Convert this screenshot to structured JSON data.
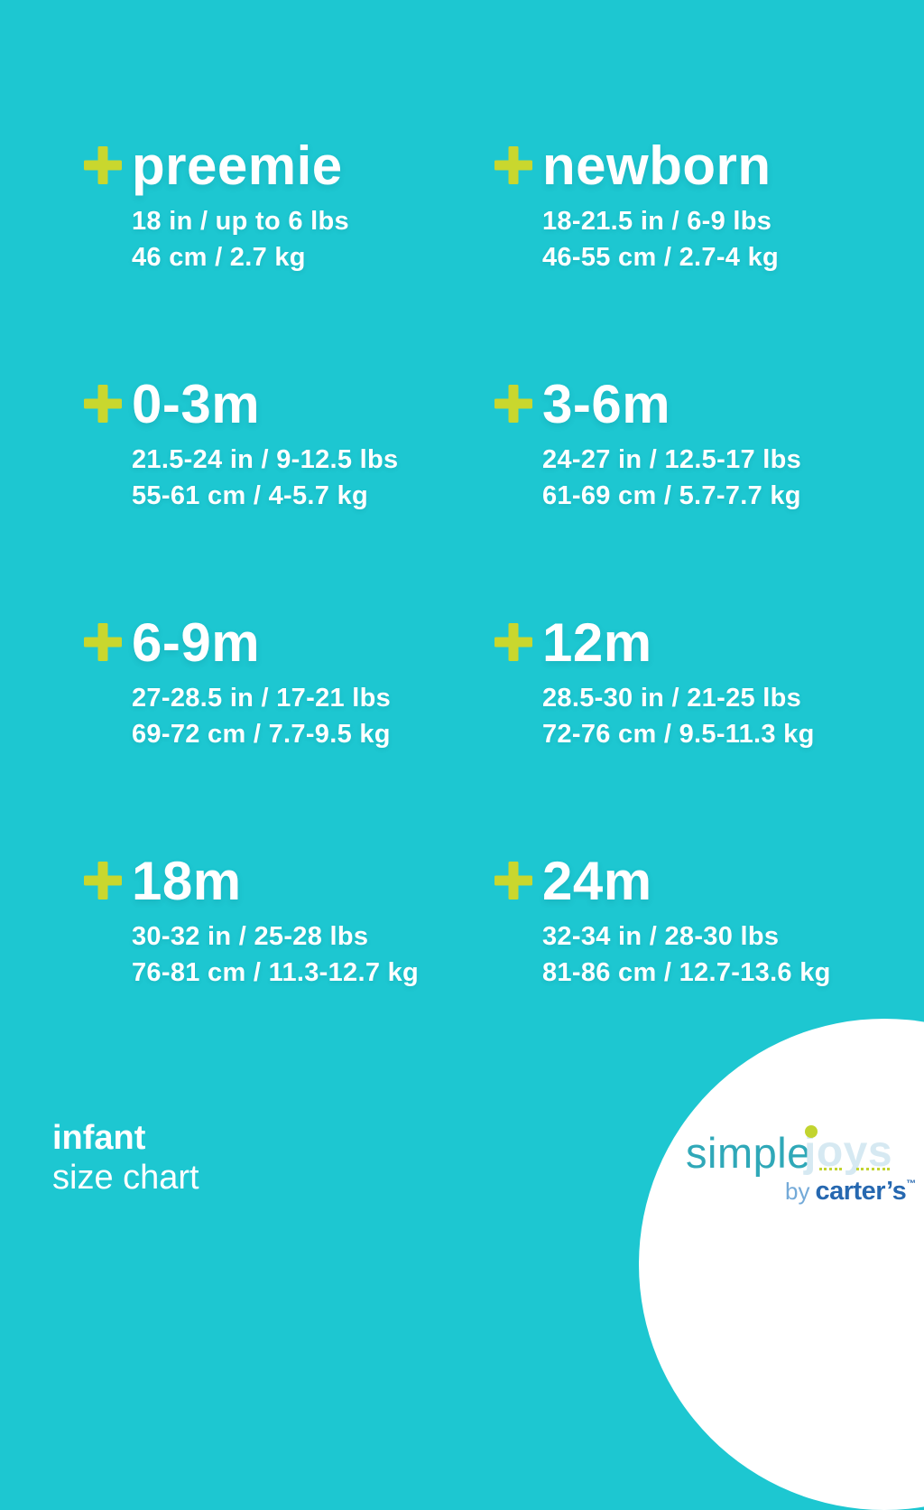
{
  "colors": {
    "background": "#1dc7d1",
    "accent": "#c9d72e",
    "text": "#ffffff",
    "logo-simple": "#2fa8b8",
    "logo-joys": "#d6e9f2",
    "logo-by": "#74aad8",
    "logo-carters": "#2668b0",
    "logo-dot": "#c2d430",
    "circle": "#ffffff"
  },
  "sizes": [
    {
      "label": "preemie",
      "imperial": "18 in / up to 6 lbs",
      "metric": "46 cm / 2.7 kg"
    },
    {
      "label": "newborn",
      "imperial": "18-21.5 in / 6-9 lbs",
      "metric": "46-55 cm / 2.7-4 kg"
    },
    {
      "label": "0-3m",
      "imperial": "21.5-24 in / 9-12.5 lbs",
      "metric": "55-61 cm / 4-5.7 kg"
    },
    {
      "label": "3-6m",
      "imperial": "24-27 in / 12.5-17 lbs",
      "metric": "61-69 cm / 5.7-7.7 kg"
    },
    {
      "label": "6-9m",
      "imperial": "27-28.5 in / 17-21 lbs",
      "metric": "69-72 cm / 7.7-9.5 kg"
    },
    {
      "label": "12m",
      "imperial": "28.5-30 in / 21-25 lbs",
      "metric": "72-76 cm / 9.5-11.3 kg"
    },
    {
      "label": "18m",
      "imperial": "30-32 in / 25-28 lbs",
      "metric": "76-81 cm / 11.3-12.7 kg"
    },
    {
      "label": "24m",
      "imperial": "32-34 in / 28-30 lbs",
      "metric": "81-86 cm / 12.7-13.6 kg"
    }
  ],
  "footer": {
    "line1": "infant",
    "line2": "size chart"
  },
  "logo": {
    "simple": "simple",
    "joys": "joys",
    "by": "by",
    "carters": "carter’s",
    "trademark": "™"
  }
}
